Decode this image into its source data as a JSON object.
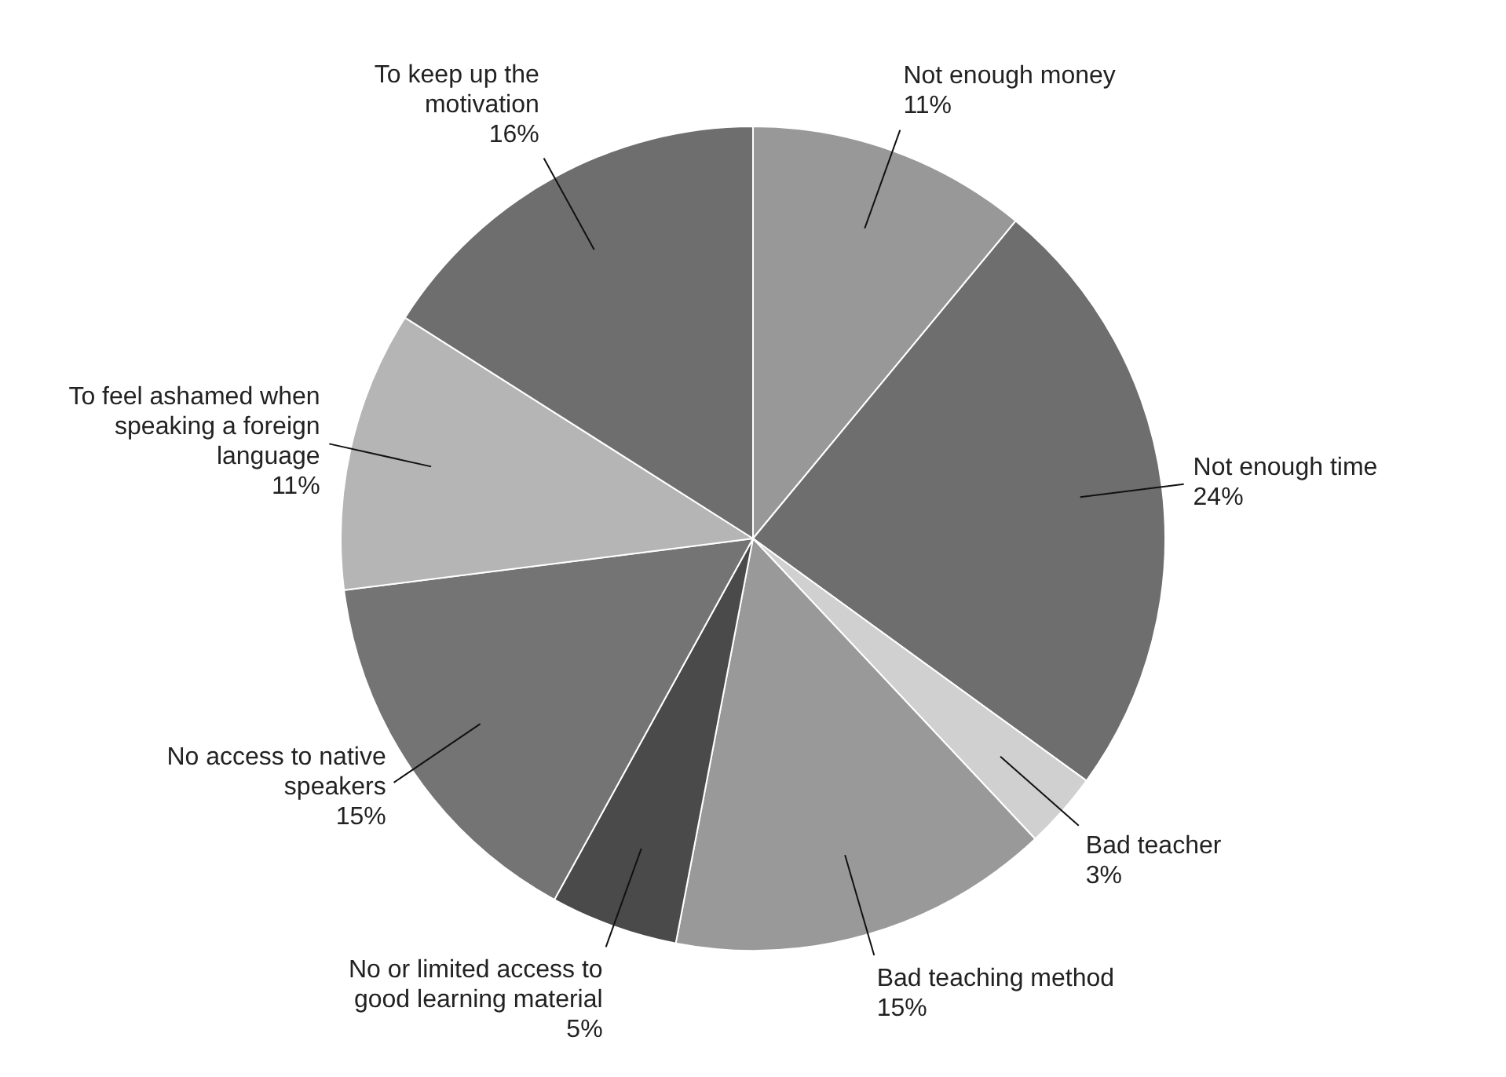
{
  "chart_data": {
    "type": "pie",
    "categories": [
      "Not enough money",
      "Not enough time",
      "Bad teacher",
      "Bad teaching method",
      "No or limited access to good learning material",
      "No access to native speakers",
      "To feel ashamed when speaking a foreign language",
      "To keep up the motivation"
    ],
    "values": [
      11,
      24,
      3,
      15,
      5,
      15,
      11,
      16
    ],
    "value_labels": [
      "11%",
      "24%",
      "3%",
      "15%",
      "5%",
      "15%",
      "11%",
      "16%"
    ],
    "colors": [
      "#989898",
      "#6e6e6e",
      "#d0d0d0",
      "#999999",
      "#4a4a4a",
      "#747474",
      "#b5b5b5",
      "#6e6e6e"
    ],
    "legend": false
  }
}
